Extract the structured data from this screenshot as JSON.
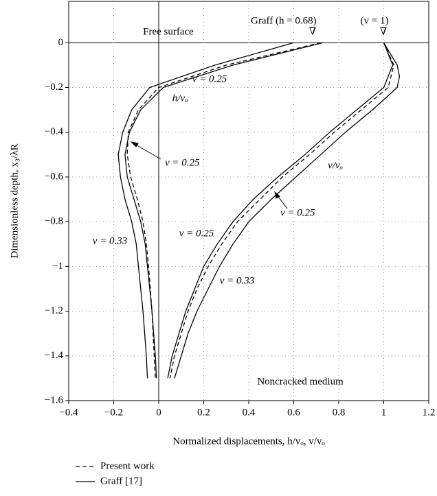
{
  "chart_data": {
    "type": "line",
    "xlabel": "Normalized displacements, h/vₒ, v/vₒ",
    "ylabel": "Dimensionless depth, x₃/λR",
    "xlim": [
      -0.4,
      1.2
    ],
    "ylim": [
      -1.6,
      0.185
    ],
    "xticks": [
      {
        "value": -0.4,
        "label": "−0.4"
      },
      {
        "value": -0.2,
        "label": "−0.2"
      },
      0,
      0.2,
      0.4,
      0.6,
      0.8,
      1,
      1.2
    ],
    "yticks": [
      {
        "value": -1.6,
        "label": "−1.6"
      },
      {
        "value": -1.4,
        "label": "−1.4"
      },
      {
        "value": -1.2,
        "label": "−1.2"
      },
      {
        "value": -1,
        "label": "−1"
      },
      {
        "value": -0.8,
        "label": "−0.8"
      },
      {
        "value": -0.6,
        "label": "−0.6"
      },
      {
        "value": -0.4,
        "label": "−0.4"
      },
      {
        "value": -0.2,
        "label": "−0.2"
      },
      0
    ],
    "grid": true,
    "color": "#000000",
    "legend": [
      {
        "name": "Present work",
        "style": "dashed"
      },
      {
        "name": "Graff  [17]",
        "style": "solid"
      }
    ],
    "series": [
      {
        "style": "solid",
        "y": [
          0,
          -0.1,
          -0.2,
          -0.3,
          -0.4,
          -0.5,
          -0.6,
          -0.7,
          -0.8,
          -0.9,
          -1.0,
          -1.2,
          -1.4,
          -1.5
        ],
        "x": [
          0.6,
          0.25,
          -0.04,
          -0.12,
          -0.16,
          -0.18,
          -0.17,
          -0.15,
          -0.12,
          -0.1,
          -0.09,
          -0.07,
          -0.055,
          -0.05
        ]
      },
      {
        "style": "solid",
        "y": [
          0,
          -0.1,
          -0.2,
          -0.3,
          -0.4,
          -0.5,
          -0.6,
          -0.7,
          -0.8,
          -0.9,
          -1.0,
          -1.2,
          -1.4,
          -1.5
        ],
        "x": [
          0.73,
          0.33,
          0.02,
          -0.08,
          -0.13,
          -0.15,
          -0.14,
          -0.11,
          -0.08,
          -0.06,
          -0.05,
          -0.03,
          -0.015,
          -0.01
        ]
      },
      {
        "style": "dashed",
        "y": [
          0,
          -0.1,
          -0.2,
          -0.3,
          -0.4,
          -0.5,
          -0.6,
          -0.7,
          -0.8,
          -0.9,
          -1.0,
          -1.2,
          -1.4,
          -1.5
        ],
        "x": [
          0.72,
          0.3,
          0.0,
          -0.09,
          -0.135,
          -0.14,
          -0.125,
          -0.095,
          -0.07,
          -0.055,
          -0.045,
          -0.03,
          -0.02,
          -0.015
        ]
      },
      {
        "style": "solid",
        "y": [
          0,
          -0.1,
          -0.15,
          -0.2,
          -0.3,
          -0.4,
          -0.5,
          -0.6,
          -0.7,
          -0.8,
          -0.9,
          -1.0,
          -1.1,
          -1.2,
          -1.3,
          -1.4,
          -1.5
        ],
        "x": [
          1.0,
          1.06,
          1.07,
          1.06,
          0.95,
          0.83,
          0.72,
          0.61,
          0.5,
          0.4,
          0.33,
          0.27,
          0.22,
          0.17,
          0.13,
          0.1,
          0.07
        ]
      },
      {
        "style": "solid",
        "y": [
          0,
          -0.1,
          -0.2,
          -0.3,
          -0.4,
          -0.5,
          -0.6,
          -0.7,
          -0.8,
          -0.9,
          -1.0,
          -1.1,
          -1.2,
          -1.3,
          -1.4,
          -1.5
        ],
        "x": [
          1.0,
          1.04,
          1.0,
          0.88,
          0.76,
          0.65,
          0.53,
          0.42,
          0.33,
          0.26,
          0.2,
          0.16,
          0.12,
          0.09,
          0.06,
          0.04
        ]
      },
      {
        "style": "dashed",
        "y": [
          0,
          -0.1,
          -0.2,
          -0.3,
          -0.4,
          -0.5,
          -0.6,
          -0.7,
          -0.8,
          -0.9,
          -1.0,
          -1.1,
          -1.2,
          -1.3,
          -1.4,
          -1.5
        ],
        "x": [
          1.0,
          1.045,
          1.02,
          0.9,
          0.78,
          0.67,
          0.55,
          0.45,
          0.35,
          0.28,
          0.22,
          0.17,
          0.13,
          0.1,
          0.07,
          0.05
        ]
      }
    ],
    "annotations": [
      "Free surface",
      "Graff  (h = 0.68)",
      "(v = 1)",
      "∇",
      "∇",
      "ν = 0.25",
      "h/vₒ",
      "ν = 0.25",
      "v/vₒ",
      "ν = 0.25",
      "ν = 0.25",
      "ν = 0.33",
      "ν = 0.33",
      "Noncracked medium"
    ]
  }
}
